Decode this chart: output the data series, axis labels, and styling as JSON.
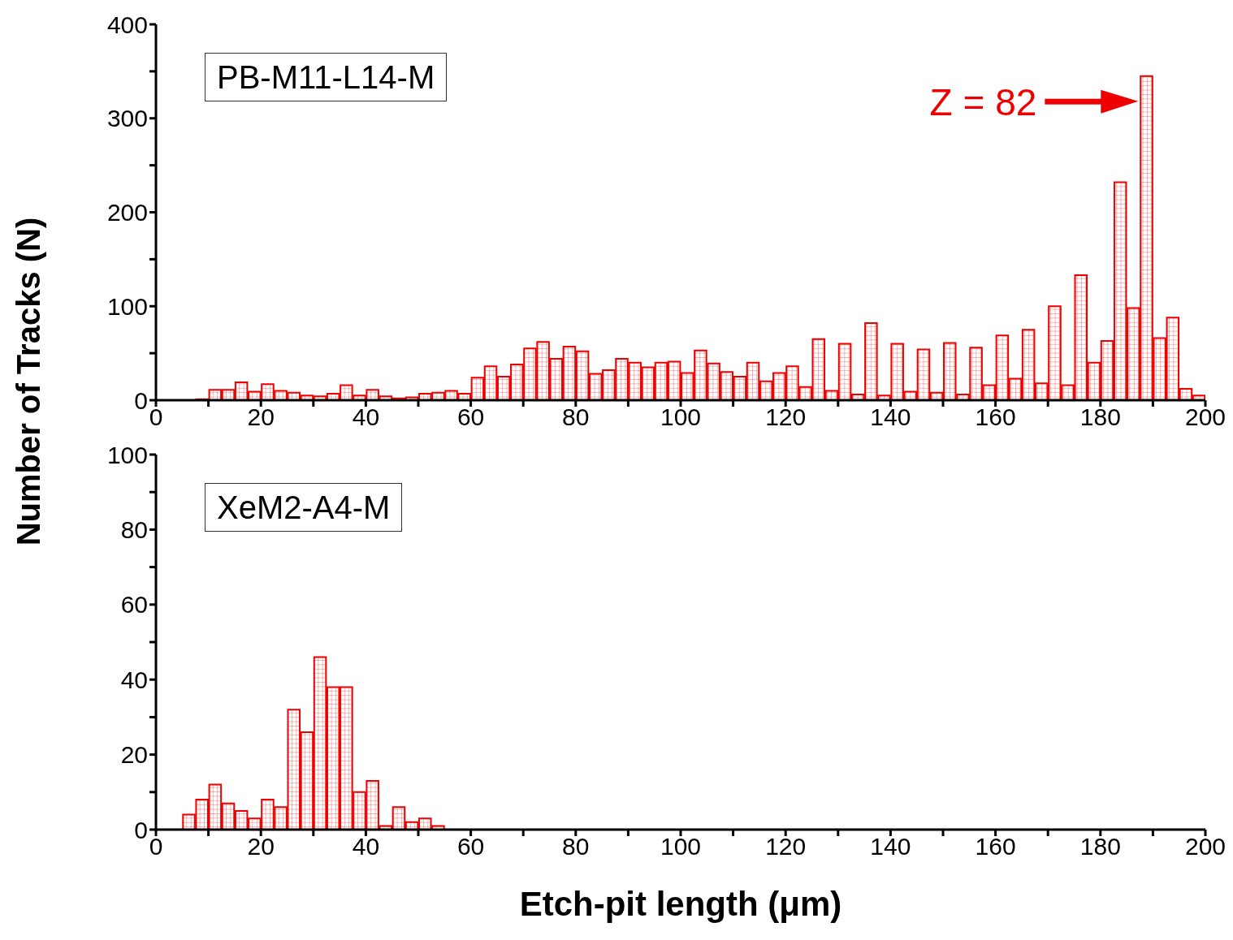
{
  "chart_data": [
    {
      "type": "histogram",
      "ylabel": "Number of Tracks (N)",
      "color": "#ee0000",
      "bins": [
        7.5,
        10,
        12.5,
        15,
        17.5,
        20,
        22.5,
        25,
        27.5,
        30,
        32.5,
        35,
        37.5,
        40,
        42.5,
        45,
        47.5,
        50,
        52.5,
        55,
        57.5,
        60,
        62.5,
        65,
        67.5,
        70,
        72.5,
        75,
        77.5,
        80,
        82.5,
        85,
        87.5,
        90,
        92.5,
        95,
        97.5,
        100,
        102.5,
        105,
        107.5,
        110,
        112.5,
        115,
        117.5,
        120,
        122.5,
        125,
        127.5,
        130,
        132.5,
        135,
        137.5,
        140,
        142.5,
        145,
        147.5,
        150,
        152.5,
        155,
        157.5,
        160,
        162.5,
        165,
        167.5,
        170,
        172.5,
        175,
        177.5,
        180,
        182.5,
        185,
        187.5,
        190,
        192.5,
        195,
        197.5,
        200
      ],
      "values": [
        1,
        11,
        11,
        19,
        9,
        17,
        10,
        8,
        5,
        4,
        7,
        16,
        5,
        11,
        4,
        2,
        3,
        7,
        8,
        10,
        7,
        24,
        36,
        25,
        38,
        55,
        62,
        44,
        57,
        52,
        28,
        32,
        44,
        40,
        35,
        40,
        41,
        29,
        53,
        39,
        30,
        25,
        40,
        20,
        29,
        36,
        14,
        65,
        10,
        60,
        6,
        82,
        5,
        60,
        9,
        54,
        8,
        61,
        6,
        56,
        16,
        69,
        23,
        75,
        18,
        100,
        16,
        133,
        40,
        63,
        232,
        98,
        345,
        66,
        88,
        12,
        5
      ],
      "xlim": [
        0,
        200
      ],
      "xticks": [
        0,
        {
          "value": 10,
          "label": null
        },
        20,
        {
          "value": 30,
          "label": null
        },
        40,
        {
          "value": 50,
          "label": null
        },
        60,
        {
          "value": 70,
          "label": null
        },
        80,
        {
          "value": 90,
          "label": null
        },
        100,
        {
          "value": 110,
          "label": null
        },
        120,
        {
          "value": 130,
          "label": null
        },
        140,
        {
          "value": 150,
          "label": null
        },
        160,
        {
          "value": 170,
          "label": null
        },
        180,
        {
          "value": 190,
          "label": null
        },
        200
      ],
      "ylim": [
        0,
        400
      ],
      "yticks": [
        0,
        {
          "value": 50,
          "label": null
        },
        100,
        {
          "value": 150,
          "label": null
        },
        200,
        {
          "value": 250,
          "label": null
        },
        300,
        {
          "value": 350,
          "label": null
        },
        400
      ],
      "annotations": [
        "PB-M11-L14-M",
        {
          "text": "Z = 82",
          "x": 188.75,
          "y": 345
        }
      ]
    },
    {
      "type": "histogram",
      "xlabel": "Etch-pit length (μm)",
      "color": "#ee0000",
      "bins": [
        5,
        7.5,
        10,
        12.5,
        15,
        17.5,
        20,
        22.5,
        25,
        27.5,
        30,
        32.5,
        35,
        37.5,
        40,
        42.5,
        45,
        47.5,
        50,
        52.5,
        55
      ],
      "values": [
        4,
        8,
        12,
        7,
        5,
        3,
        8,
        6,
        32,
        26,
        46,
        38,
        38,
        10,
        13,
        1,
        6,
        2,
        3,
        1
      ],
      "xlim": [
        0,
        200
      ],
      "xticks": [
        0,
        {
          "value": 10,
          "label": null
        },
        20,
        {
          "value": 30,
          "label": null
        },
        40,
        {
          "value": 50,
          "label": null
        },
        60,
        {
          "value": 70,
          "label": null
        },
        80,
        {
          "value": 90,
          "label": null
        },
        100,
        {
          "value": 110,
          "label": null
        },
        120,
        {
          "value": 130,
          "label": null
        },
        140,
        {
          "value": 150,
          "label": null
        },
        160,
        {
          "value": 170,
          "label": null
        },
        180,
        {
          "value": 190,
          "label": null
        },
        200
      ],
      "ylim": [
        0,
        100
      ],
      "yticks": [
        0,
        {
          "value": 10,
          "label": null
        },
        20,
        {
          "value": 30,
          "label": null
        },
        40,
        {
          "value": 50,
          "label": null
        },
        60,
        {
          "value": 70,
          "label": null
        },
        80,
        {
          "value": 90,
          "label": null
        },
        100
      ],
      "annotations": [
        "XeM2-A4-M"
      ]
    }
  ]
}
